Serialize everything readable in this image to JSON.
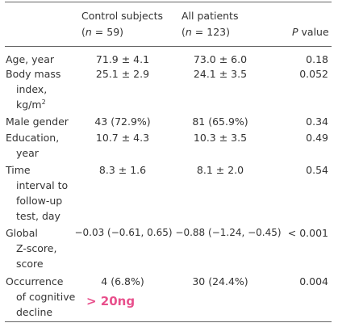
{
  "header": {
    "col_ctrl_title": "Control subjects",
    "col_ctrl_n_pre": "(",
    "col_ctrl_n_var": "n",
    "col_ctrl_n_post": " = 59)",
    "col_all_title": "All patients",
    "col_all_n_pre": "(",
    "col_all_n_var": "n",
    "col_all_n_post": " = 123)",
    "col_p_var": "P",
    "col_p_post": " value"
  },
  "rows": [
    {
      "label_lines": [
        "Age, year"
      ],
      "ctrl": "71.9 ± 4.1",
      "all": "73.0 ± 6.0",
      "p": "0.18"
    },
    {
      "label_lines": [
        "Body mass",
        "index,",
        "kg/m"
      ],
      "label_sup": "2",
      "ctrl": "25.1 ± 2.9",
      "all": "24.1 ± 3.5",
      "p": "0.052"
    },
    {
      "label_lines": [
        "Male gender"
      ],
      "ctrl": "43 (72.9%)",
      "all": "81 (65.9%)",
      "p": "0.34"
    },
    {
      "label_lines": [
        "Education,",
        "year"
      ],
      "ctrl": "10.7 ± 4.3",
      "all": "10.3 ± 3.5",
      "p": "0.49"
    },
    {
      "label_lines": [
        "Time",
        "interval to",
        "follow-up",
        "test, day"
      ],
      "ctrl": "8.3 ± 1.6",
      "all": "8.1 ± 2.0",
      "p": "0.54"
    },
    {
      "label_lines": [
        "Global",
        "Z-score,",
        "score"
      ],
      "ctrl": "−0.03 (−0.61, 0.65)",
      "all": "−0.88 (−1.24, −0.45)",
      "p": "< 0.001"
    },
    {
      "label_lines": [
        "Occurrence",
        "of cognitive",
        "decline"
      ],
      "ctrl": "4 (6.8%)",
      "all": "30 (24.4%)",
      "p": "0.004"
    }
  ],
  "annotation": "> 20ng",
  "colors": {
    "text": "#333333",
    "rule": "#666666",
    "annotation": "#e8508c"
  }
}
